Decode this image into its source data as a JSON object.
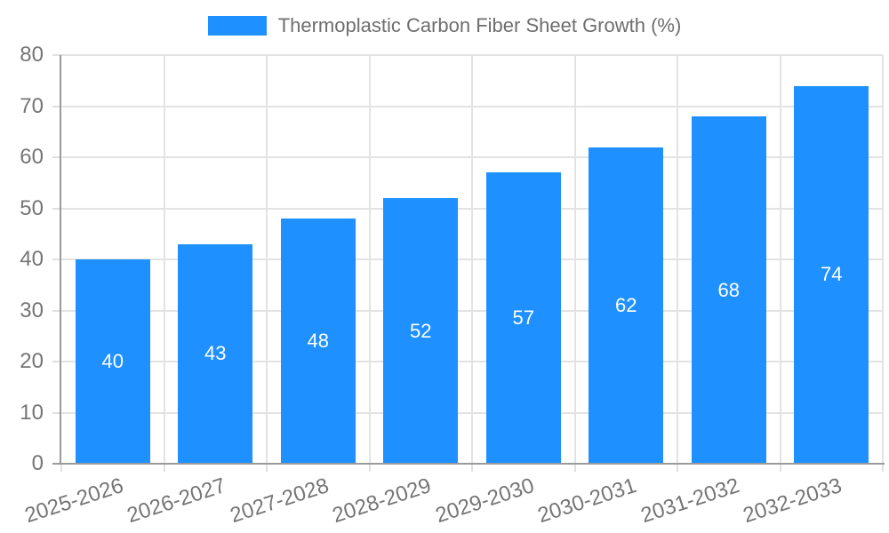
{
  "chart": {
    "legend": {
      "label": "Thermoplastic Carbon Fiber Sheet Growth (%)"
    }
  },
  "colors": {
    "bar": "#1e90ff",
    "bar_label": "#ffffff",
    "grid": "#e3e3e3",
    "tick_mark": "#e0e0e0",
    "axis_line": "#9a9a9a",
    "tick_label": "#757575",
    "legend_text": "#6e6e6e",
    "background": "#ffffff"
  },
  "chart_data": {
    "type": "bar",
    "title": "Thermoplastic Carbon Fiber Sheet Growth (%)",
    "categories": [
      "2025-2026",
      "2026-2027",
      "2027-2028",
      "2028-2029",
      "2029-2030",
      "2030-2031",
      "2031-2032",
      "2032-2033"
    ],
    "values": [
      40,
      43,
      48,
      52,
      57,
      62,
      68,
      74
    ],
    "xlabel": "",
    "ylabel": "",
    "ylim": [
      0,
      80
    ],
    "yticks": [
      0,
      10,
      20,
      30,
      40,
      50,
      60,
      70,
      80
    ],
    "grid": true,
    "legend_position": "top-center",
    "value_labels": "inside-center",
    "value_label_color": "#ffffff",
    "x_tick_rotation_deg": -18
  }
}
